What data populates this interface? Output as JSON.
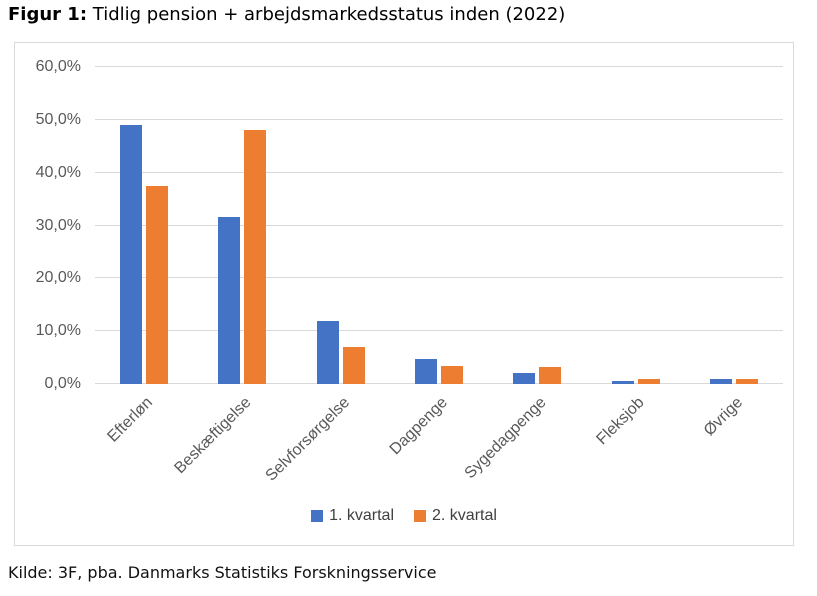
{
  "header": {
    "title_bold": "Figur 1:",
    "title_rest": "Tidlig pension + arbejdsmarkedsstatus inden (2022)"
  },
  "footer": {
    "source": "Kilde: 3F, pba. Danmarks Statistiks Forskningsservice"
  },
  "chart_data": {
    "type": "bar",
    "title": "Figur 1: Tidlig pension + arbejdsmarkedsstatus inden (2022)",
    "categories": [
      "Efterløn",
      "Beskæftigelse",
      "Selvforsørgelse",
      "Dagpenge",
      "Sygedagpenge",
      "Fleksjob",
      "Øvrige"
    ],
    "series": [
      {
        "name": "1. kvartal",
        "color": "#4472C4",
        "values": [
          49.1,
          31.7,
          11.9,
          4.7,
          2.0,
          0.6,
          1.0
        ]
      },
      {
        "name": "2. kvartal",
        "color": "#ED7D31",
        "values": [
          37.5,
          48.0,
          7.0,
          3.5,
          3.2,
          0.9,
          0.9
        ]
      }
    ],
    "xlabel": "",
    "ylabel": "",
    "ylim": [
      0,
      60
    ],
    "yticks": [
      {
        "value": 0,
        "label": "0,0%"
      },
      {
        "value": 10,
        "label": "10,0%"
      },
      {
        "value": 20,
        "label": "20,0%"
      },
      {
        "value": 30,
        "label": "30,0%"
      },
      {
        "value": 40,
        "label": "40,0%"
      },
      {
        "value": 50,
        "label": "50,0%"
      },
      {
        "value": 60,
        "label": "60,0%"
      }
    ],
    "grid": true,
    "legend_position": "bottom",
    "colors": {
      "grid": "#D9D9D9",
      "border": "#D9D9D9",
      "axis_text": "#595959",
      "legend_text": "#404040"
    }
  }
}
